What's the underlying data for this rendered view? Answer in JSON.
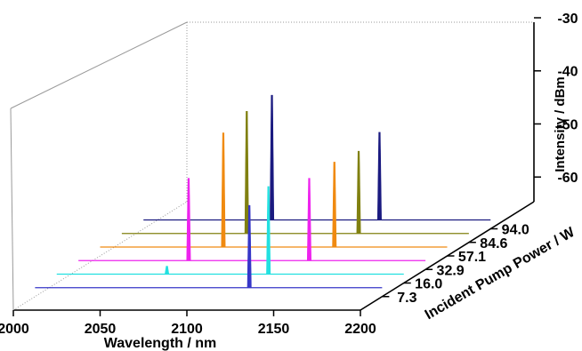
{
  "chart_data": {
    "type": "line",
    "projection": "3d-waterfall",
    "xlabel": "Wavelength / nm",
    "ylabel": "Incident Pump Power / W",
    "zlabel": "Intensity / dBm",
    "x_ticks": [
      2000,
      2050,
      2100,
      2150,
      2200
    ],
    "y_ticks": [
      "7.3",
      "16.0",
      "32.9",
      "57.1",
      "84.6",
      "94.0"
    ],
    "z_ticks": [
      -30,
      -40,
      -50,
      -60
    ],
    "xlim": [
      2000,
      2200
    ],
    "zlim": [
      -68,
      -30
    ],
    "series": [
      {
        "power": 7.3,
        "color": "#3636c8",
        "peaks": [
          {
            "wavelength": 2123.5,
            "intensity": -52.5
          }
        ]
      },
      {
        "power": 16.0,
        "color": "#22e0e0",
        "peaks": [
          {
            "wavelength": 2063.5,
            "intensity": -66.5
          },
          {
            "wavelength": 2122.0,
            "intensity": -51.5
          }
        ]
      },
      {
        "power": 32.9,
        "color": "#ee22ee",
        "peaks": [
          {
            "wavelength": 2063.5,
            "intensity": -52.5
          },
          {
            "wavelength": 2133.0,
            "intensity": -52.5
          }
        ]
      },
      {
        "power": 57.1,
        "color": "#f08a10",
        "peaks": [
          {
            "wavelength": 2071.0,
            "intensity": -46.5
          },
          {
            "wavelength": 2135.0,
            "intensity": -52.0
          }
        ]
      },
      {
        "power": 84.6,
        "color": "#808010",
        "peaks": [
          {
            "wavelength": 2072.0,
            "intensity": -45.0
          },
          {
            "wavelength": 2136.5,
            "intensity": -52.5
          }
        ]
      },
      {
        "power": 94.0,
        "color": "#1a1a80",
        "peaks": [
          {
            "wavelength": 2074.0,
            "intensity": -44.5
          },
          {
            "wavelength": 2136.0,
            "intensity": -51.5
          }
        ]
      }
    ]
  }
}
